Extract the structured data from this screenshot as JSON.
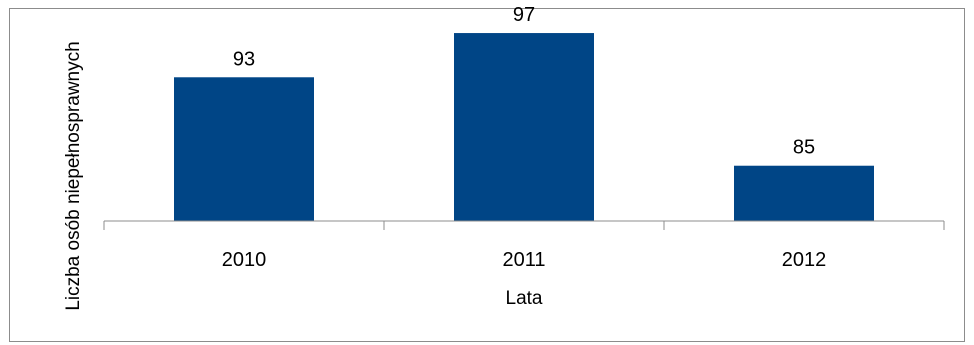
{
  "chart_data": {
    "type": "bar",
    "categories": [
      "2010",
      "2011",
      "2012"
    ],
    "values": [
      93,
      97,
      85
    ],
    "xlabel": "Lata",
    "ylabel": "Liczba osób niepełnosprawnych",
    "ylim": [
      80,
      98
    ],
    "grid": false,
    "data_labels": true,
    "colors": {
      "bar": "#004586",
      "axis": "#8c8c8c"
    }
  }
}
